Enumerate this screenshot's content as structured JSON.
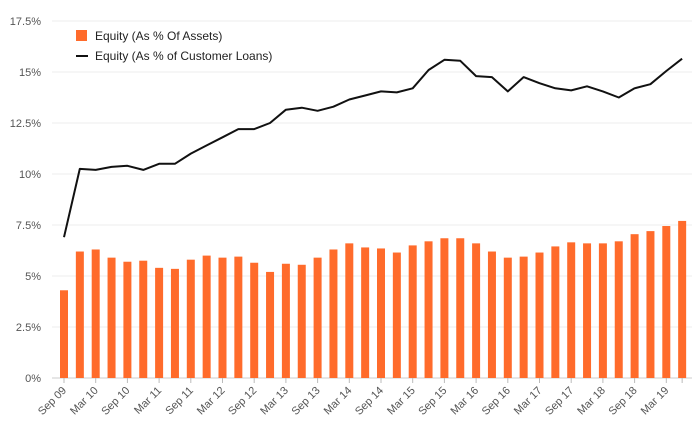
{
  "chart_data": {
    "type": "bar",
    "ylim": [
      0,
      17.5
    ],
    "y_ticks": [
      "0%",
      "2.5%",
      "5%",
      "7.5%",
      "10%",
      "12.5%",
      "15%",
      "17.5%"
    ],
    "y_tick_values": [
      0,
      2.5,
      5,
      7.5,
      10,
      12.5,
      15,
      17.5
    ],
    "grid": true,
    "legend_position": "top-left",
    "x_tick_labels": [
      "Sep 09",
      "Mar 10",
      "Sep 10",
      "Mar 11",
      "Sep 11",
      "Mar 12",
      "Sep 12",
      "Mar 13",
      "Sep 13",
      "Mar 14",
      "Sep 14",
      "Mar 15",
      "Sep 15",
      "Mar 16",
      "Sep 16",
      "Mar 17",
      "Sep 17",
      "Mar 18",
      "Sep 18",
      "Mar 19"
    ],
    "categories": [
      "Sep 09",
      "Dec 09",
      "Mar 10",
      "Jun 10",
      "Sep 10",
      "Dec 10",
      "Mar 11",
      "Jun 11",
      "Sep 11",
      "Dec 11",
      "Mar 12",
      "Jun 12",
      "Sep 12",
      "Dec 12",
      "Mar 13",
      "Jun 13",
      "Sep 13",
      "Dec 13",
      "Mar 14",
      "Jun 14",
      "Sep 14",
      "Dec 14",
      "Mar 15",
      "Jun 15",
      "Sep 15",
      "Dec 15",
      "Mar 16",
      "Jun 16",
      "Sep 16",
      "Dec 16",
      "Mar 17",
      "Jun 17",
      "Sep 17",
      "Dec 17",
      "Mar 18",
      "Jun 18",
      "Sep 18",
      "Dec 18",
      "Mar 19",
      "Jun 19"
    ],
    "series": [
      {
        "name": "Equity (As % Of Assets)",
        "kind": "bar",
        "color": "#ff6b2b",
        "values": [
          4.3,
          6.2,
          6.3,
          5.9,
          5.7,
          5.75,
          5.4,
          5.35,
          5.8,
          6.0,
          5.9,
          5.95,
          5.65,
          5.2,
          5.6,
          5.55,
          5.9,
          6.3,
          6.6,
          6.4,
          6.35,
          6.15,
          6.5,
          6.7,
          6.85,
          6.85,
          6.6,
          6.2,
          5.9,
          5.95,
          6.15,
          6.45,
          6.65,
          6.6,
          6.6,
          6.7,
          7.05,
          7.2,
          7.45,
          7.7
        ]
      },
      {
        "name": "Equity (As % of Customer Loans)",
        "kind": "line",
        "color": "#111111",
        "values": [
          6.9,
          10.25,
          10.2,
          10.35,
          10.4,
          10.2,
          10.5,
          10.5,
          11.0,
          11.4,
          11.8,
          12.2,
          12.2,
          12.5,
          13.15,
          13.25,
          13.1,
          13.3,
          13.65,
          13.85,
          14.05,
          14.0,
          14.2,
          15.1,
          15.6,
          15.55,
          14.8,
          14.75,
          14.05,
          14.75,
          14.45,
          14.2,
          14.1,
          14.3,
          14.05,
          13.75,
          14.2,
          14.4,
          15.05,
          15.65
        ]
      }
    ]
  }
}
